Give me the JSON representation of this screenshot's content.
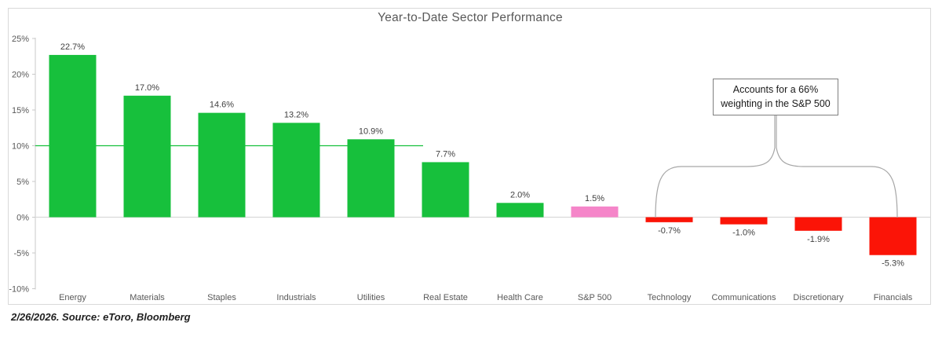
{
  "page": {
    "source_note": "2/26/2026. Source: eToro, Bloomberg"
  },
  "annotation": {
    "line1": "Accounts for a 66%",
    "line2": "weighting in the S&P 500",
    "full_text": "Accounts for a 66% weighting in the S&P 500",
    "targets": [
      "Technology",
      "Communications",
      "Discretionary",
      "Financials"
    ]
  },
  "chart_data": {
    "type": "bar",
    "title": "Year-to-Date Sector Performance",
    "categories": [
      "Energy",
      "Materials",
      "Staples",
      "Industrials",
      "Utilities",
      "Real Estate",
      "Health Care",
      "S&P 500",
      "Technology",
      "Communications",
      "Discretionary",
      "Financials"
    ],
    "values": [
      22.7,
      17.0,
      14.6,
      13.2,
      10.9,
      7.7,
      2.0,
      1.5,
      -0.7,
      -1.0,
      -1.9,
      -5.3
    ],
    "data_labels": [
      "22.7%",
      "17.0%",
      "14.6%",
      "13.2%",
      "10.9%",
      "7.7%",
      "2.0%",
      "1.5%",
      "-0.7%",
      "-1.0%",
      "-1.9%",
      "-5.3%"
    ],
    "bar_colors": [
      "#17c03c",
      "#17c03c",
      "#17c03c",
      "#17c03c",
      "#17c03c",
      "#17c03c",
      "#17c03c",
      "#f585c9",
      "#fb1407",
      "#fb1407",
      "#fb1407",
      "#fb1407"
    ],
    "xlabel": "",
    "ylabel": "",
    "ylim": [
      -10,
      25
    ],
    "yticks": [
      25,
      20,
      15,
      10,
      5,
      0,
      -5,
      -10
    ],
    "ytick_labels": [
      "25%",
      "20%",
      "15%",
      "10%",
      "5%",
      "0%",
      "-5%",
      "-10%"
    ],
    "grid": "off",
    "legend": "none",
    "reference_line": {
      "value": 10,
      "color": "#17c03c",
      "spans_categories": 5.2
    }
  },
  "colors": {
    "positive": "#17c03c",
    "benchmark": "#f585c9",
    "negative": "#fb1407",
    "axis_line": "#c9c9c9",
    "baseline": "#d9d9d9",
    "tick_label": "#595959",
    "title": "#595959",
    "value_label": "#404040",
    "category_label": "#595959",
    "brace": "#a6a6a6",
    "frame_border": "#d9d9d9",
    "annotation_border": "#7f7f7f"
  }
}
